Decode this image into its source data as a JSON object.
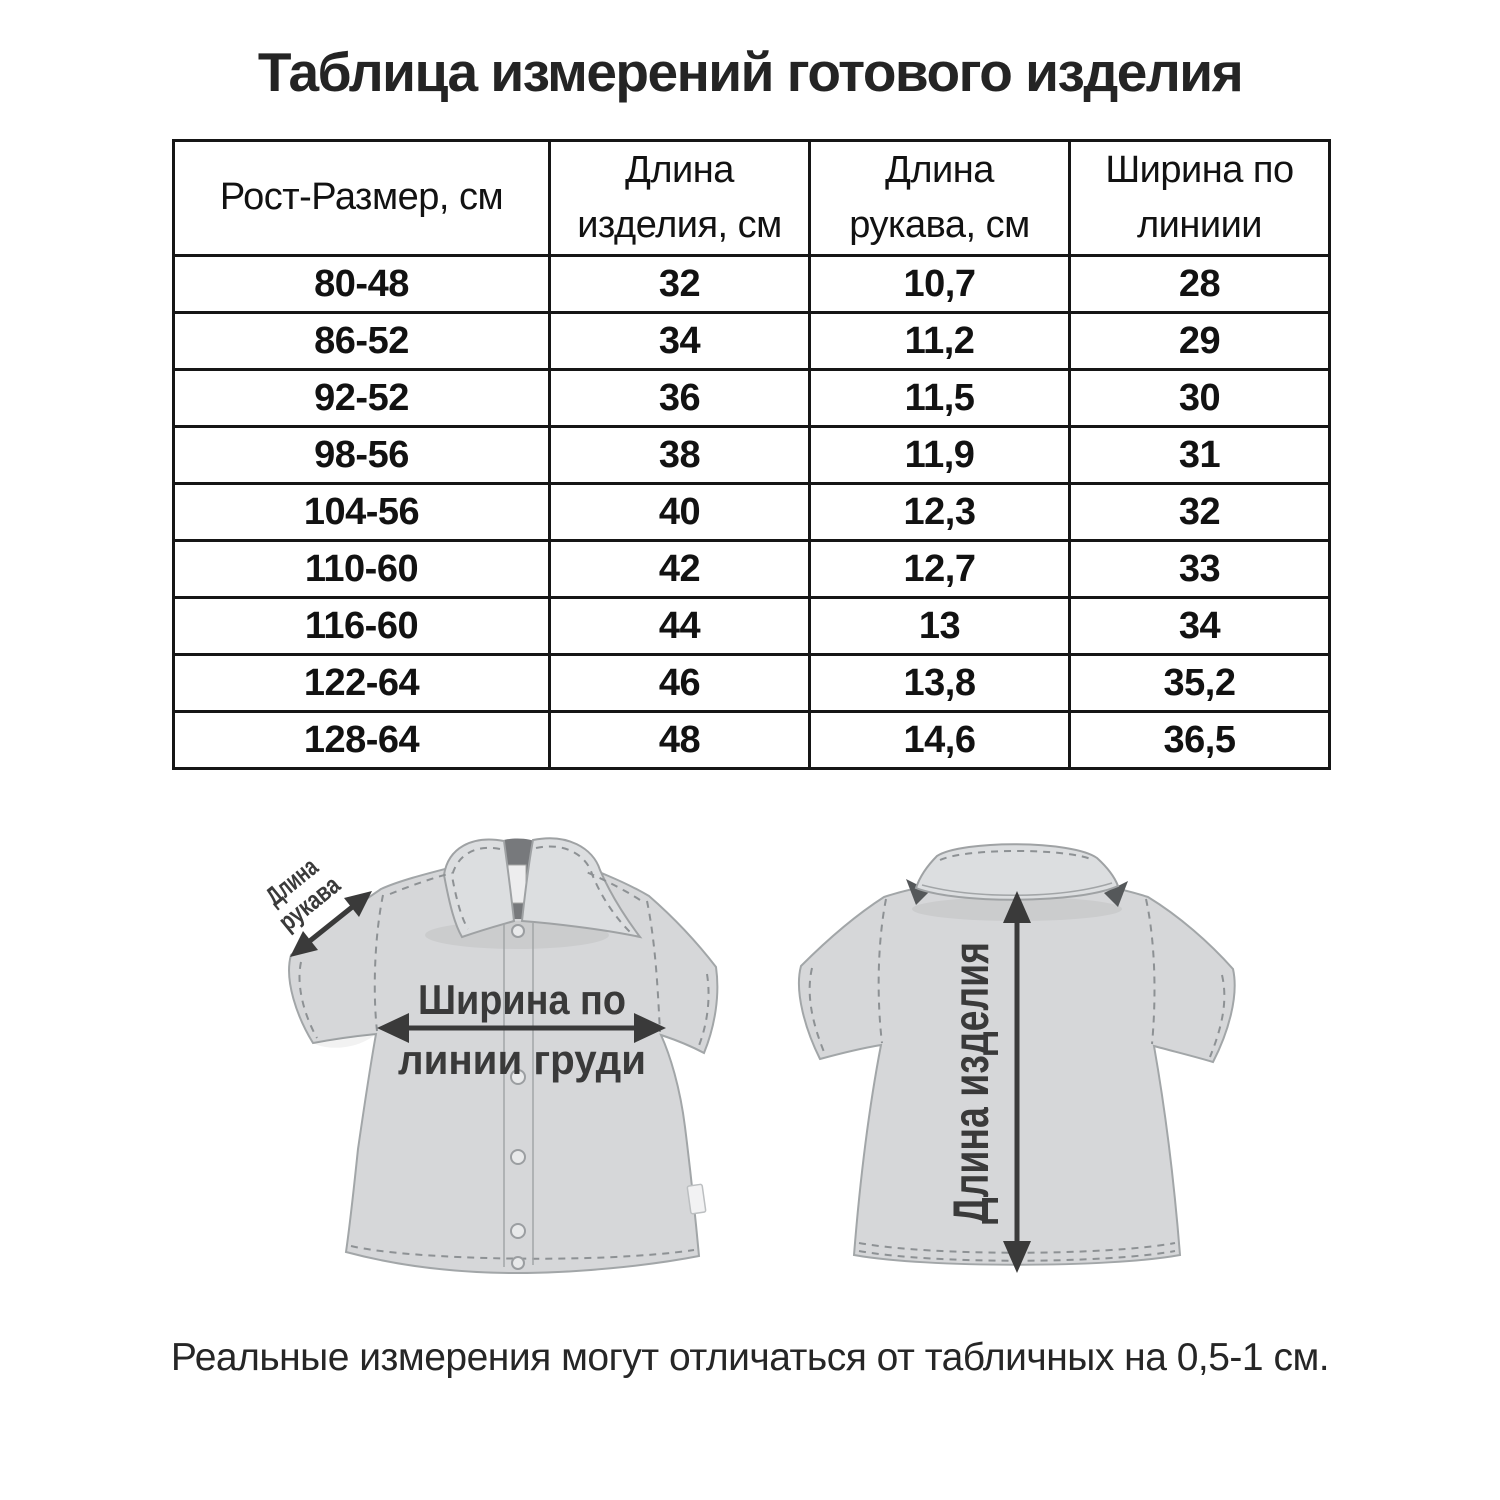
{
  "title": "Таблица измерений готового изделия",
  "table": {
    "columns": [
      {
        "line1": "Рост-Размер, см",
        "line2": ""
      },
      {
        "line1": "Длина",
        "line2": "изделия, см"
      },
      {
        "line1": "Длина",
        "line2": "рукава, см"
      },
      {
        "line1": "Ширина по",
        "line2": "линиии"
      }
    ],
    "rows": [
      [
        "80-48",
        "32",
        "10,7",
        "28"
      ],
      [
        "86-52",
        "34",
        "11,2",
        "29"
      ],
      [
        "92-52",
        "36",
        "11,5",
        "30"
      ],
      [
        "98-56",
        "38",
        "11,9",
        "31"
      ],
      [
        "104-56",
        "40",
        "12,3",
        "32"
      ],
      [
        "110-60",
        "42",
        "12,7",
        "33"
      ],
      [
        "116-60",
        "44",
        "13",
        "34"
      ],
      [
        "122-64",
        "46",
        "13,8",
        "35,2"
      ],
      [
        "128-64",
        "48",
        "14,6",
        "36,5"
      ]
    ]
  },
  "diagram": {
    "sleeve_label_line1": "Длина",
    "sleeve_label_line2": "рукава",
    "chest_label_line1": "Ширина по",
    "chest_label_line2": "линии груди",
    "length_label": "Длина изделия"
  },
  "note": "Реальные измерения могут отличаться от табличных на 0,5-1 см.",
  "colors": {
    "text": "#242424",
    "table_border": "#161616",
    "label": "#3a3a3a",
    "shirt_fill": "#d6d7d9"
  }
}
